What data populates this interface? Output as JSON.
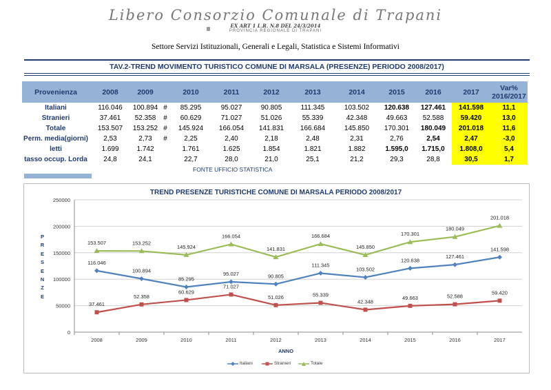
{
  "header": {
    "script_title": "Libero Consorzio Comunale di Trapani",
    "subtitle_line1": "EX ART 1 L.R. N.8 DEL 24/3/2014",
    "subtitle_line2": "PROVINCIA REGIONALE DI TRAPANI",
    "settore": "Settore Servizi Istituzionali, Generali e Legali, Statistica e Sistemi Informativi"
  },
  "table": {
    "title": "TAV.2-TREND MOVIMENTO TURISTICO COMUNE DI MARSALA (PRESENZE) PERIODO 2008/2017)",
    "columns": [
      "Provenienza",
      "2008",
      "2009",
      "",
      "2010",
      "2011",
      "2012",
      "2013",
      "2014",
      "2015",
      "2016",
      "2017",
      "Var%"
    ],
    "var_sub": "2016/2017",
    "rows": [
      {
        "label": "Italiani",
        "cells": [
          "116.046",
          "100.894",
          "#",
          "85.295",
          "95.027",
          "90.805",
          "111.345",
          "103.502",
          "120.638",
          "127.461",
          "141.598",
          "11,1"
        ]
      },
      {
        "label": "Stranieri",
        "cells": [
          "37.461",
          "52.358",
          "#",
          "60.629",
          "71.027",
          "51.026",
          "55.339",
          "42.348",
          "49.663",
          "52.588",
          "59.420",
          "13,0"
        ]
      },
      {
        "label": "Totale",
        "cells": [
          "153.507",
          "153.252",
          "#",
          "145.924",
          "166.054",
          "141.831",
          "166.684",
          "145.850",
          "170.301",
          "180.049",
          "201.018",
          "11,6"
        ]
      },
      {
        "label": "Perm. media(giorni)",
        "cells": [
          "2,53",
          "2,73",
          "#",
          "2,25",
          "2,40",
          "2,18",
          "2,48",
          "2,31",
          "2,76",
          "2,54",
          "2,47",
          "-3,0"
        ]
      },
      {
        "label": "letti",
        "cells": [
          "1.699",
          "1.742",
          "",
          "1.761",
          "1.625",
          "1.854",
          "1.821",
          "1.882",
          "1.595,0",
          "1.715,0",
          "1.808,0",
          "5,4"
        ]
      },
      {
        "label": "tasso occup. Lorda",
        "cells": [
          "24,8",
          "24,1",
          "",
          "22,7",
          "28,0",
          "21,0",
          "25,1",
          "21,2",
          "29,3",
          "28,8",
          "30,5",
          "1,7"
        ]
      }
    ],
    "fonte": "FONTE UFFICIO STATISTICA"
  },
  "chart_data": {
    "type": "line",
    "title": "TREND PRESENZE TURISTICHE  COMUNE DI MARSALA PERIODO 2008/2017",
    "xlabel": "ANNO",
    "ylabel": "PRESENZE",
    "ylim": [
      0,
      250000
    ],
    "yticks": [
      0,
      50000,
      100000,
      150000,
      200000,
      250000
    ],
    "categories": [
      "2008",
      "2009",
      "2010",
      "2011",
      "2012",
      "2013",
      "2014",
      "2015",
      "2016",
      "2017"
    ],
    "series": [
      {
        "name": "Italiani",
        "color": "#4F81BD",
        "marker": "diamond",
        "values": [
          116046,
          100894,
          85295,
          95027,
          90805,
          111345,
          103502,
          120638,
          127461,
          141598
        ],
        "labels": [
          "116.046",
          "100.894",
          "85.295",
          "95.027",
          "90.805",
          "111.345",
          "103.502",
          "120.638",
          "127.461",
          "141.598"
        ]
      },
      {
        "name": "Stranieri",
        "color": "#C0504D",
        "marker": "square",
        "values": [
          37461,
          52358,
          60629,
          71027,
          51026,
          55339,
          42348,
          49663,
          52588,
          59420
        ],
        "labels": [
          "37.461",
          "52.358",
          "60.629",
          "71.027",
          "51.026",
          "55.339",
          "42.348",
          "49.663",
          "52.588",
          "59.420"
        ]
      },
      {
        "name": "Totale",
        "color": "#9BBB59",
        "marker": "triangle",
        "values": [
          153507,
          153252,
          145924,
          166054,
          141831,
          166684,
          145850,
          170301,
          180049,
          201018
        ],
        "labels": [
          "153.507",
          "153.252",
          "145.924",
          "166.054",
          "141.831",
          "166.684",
          "145.850",
          "170.301",
          "180.049",
          "201.018"
        ]
      }
    ]
  }
}
